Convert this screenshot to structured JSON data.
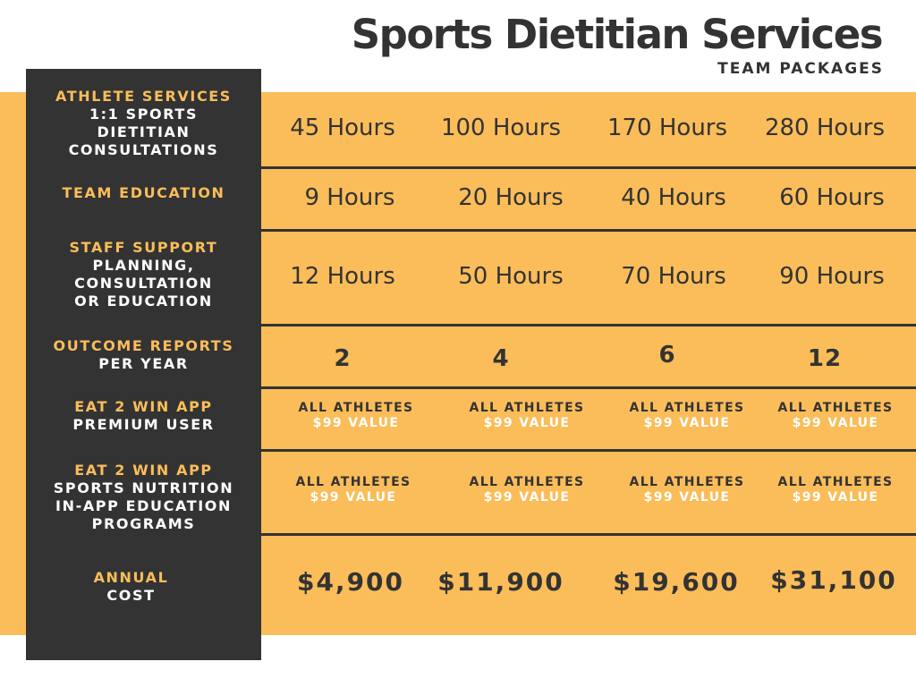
{
  "header": {
    "title": "Sports Dietitian Services",
    "subtitle": "TEAM PACKAGES"
  },
  "colors": {
    "accent_orange": "#fbbd59",
    "dark_gray": "#333333",
    "white": "#ffffff"
  },
  "rows": [
    {
      "label_primary": "ATHLETE SERVICES",
      "label_secondary": "1:1 SPORTS\nDIETITIAN\nCONSULTATIONS",
      "values": [
        "45 Hours",
        "100 Hours",
        "170 Hours",
        "280 Hours"
      ]
    },
    {
      "label_primary": "TEAM EDUCATION",
      "label_secondary": "",
      "values": [
        "9 Hours",
        "20 Hours",
        "40 Hours",
        "60 Hours"
      ]
    },
    {
      "label_primary": "STAFF SUPPORT",
      "label_secondary": "PLANNING,\nCONSULTATION\nOR EDUCATION",
      "values": [
        "12 Hours",
        "50 Hours",
        "70 Hours",
        "90 Hours"
      ]
    },
    {
      "label_primary": "OUTCOME REPORTS",
      "label_secondary": "PER YEAR",
      "values": [
        "2",
        "4",
        "6",
        "12"
      ]
    },
    {
      "label_primary": "EAT 2 WIN APP",
      "label_secondary": "PREMIUM USER",
      "values": [
        {
          "line1": "ALL ATHLETES",
          "line2": "$99 VALUE"
        },
        {
          "line1": "ALL ATHLETES",
          "line2": "$99 VALUE"
        },
        {
          "line1": "ALL ATHLETES",
          "line2": "$99 VALUE"
        },
        {
          "line1": "ALL ATHLETES",
          "line2": "$99 VALUE"
        }
      ]
    },
    {
      "label_primary": "EAT 2 WIN APP",
      "label_secondary": "SPORTS NUTRITION\nIN-APP EDUCATION\nPROGRAMS",
      "values": [
        {
          "line1": "ALL ATHLETES",
          "line2": "$99 VALUE"
        },
        {
          "line1": "ALL ATHLETES",
          "line2": "$99 VALUE"
        },
        {
          "line1": "ALL ATHLETES",
          "line2": "$99 VALUE"
        },
        {
          "line1": "ALL ATHLETES",
          "line2": "$99 VALUE"
        }
      ]
    },
    {
      "label_primary": "ANNUAL",
      "label_secondary": "COST",
      "values": [
        "$4,900",
        "$11,900",
        "$19,600",
        "$31,100"
      ]
    }
  ]
}
